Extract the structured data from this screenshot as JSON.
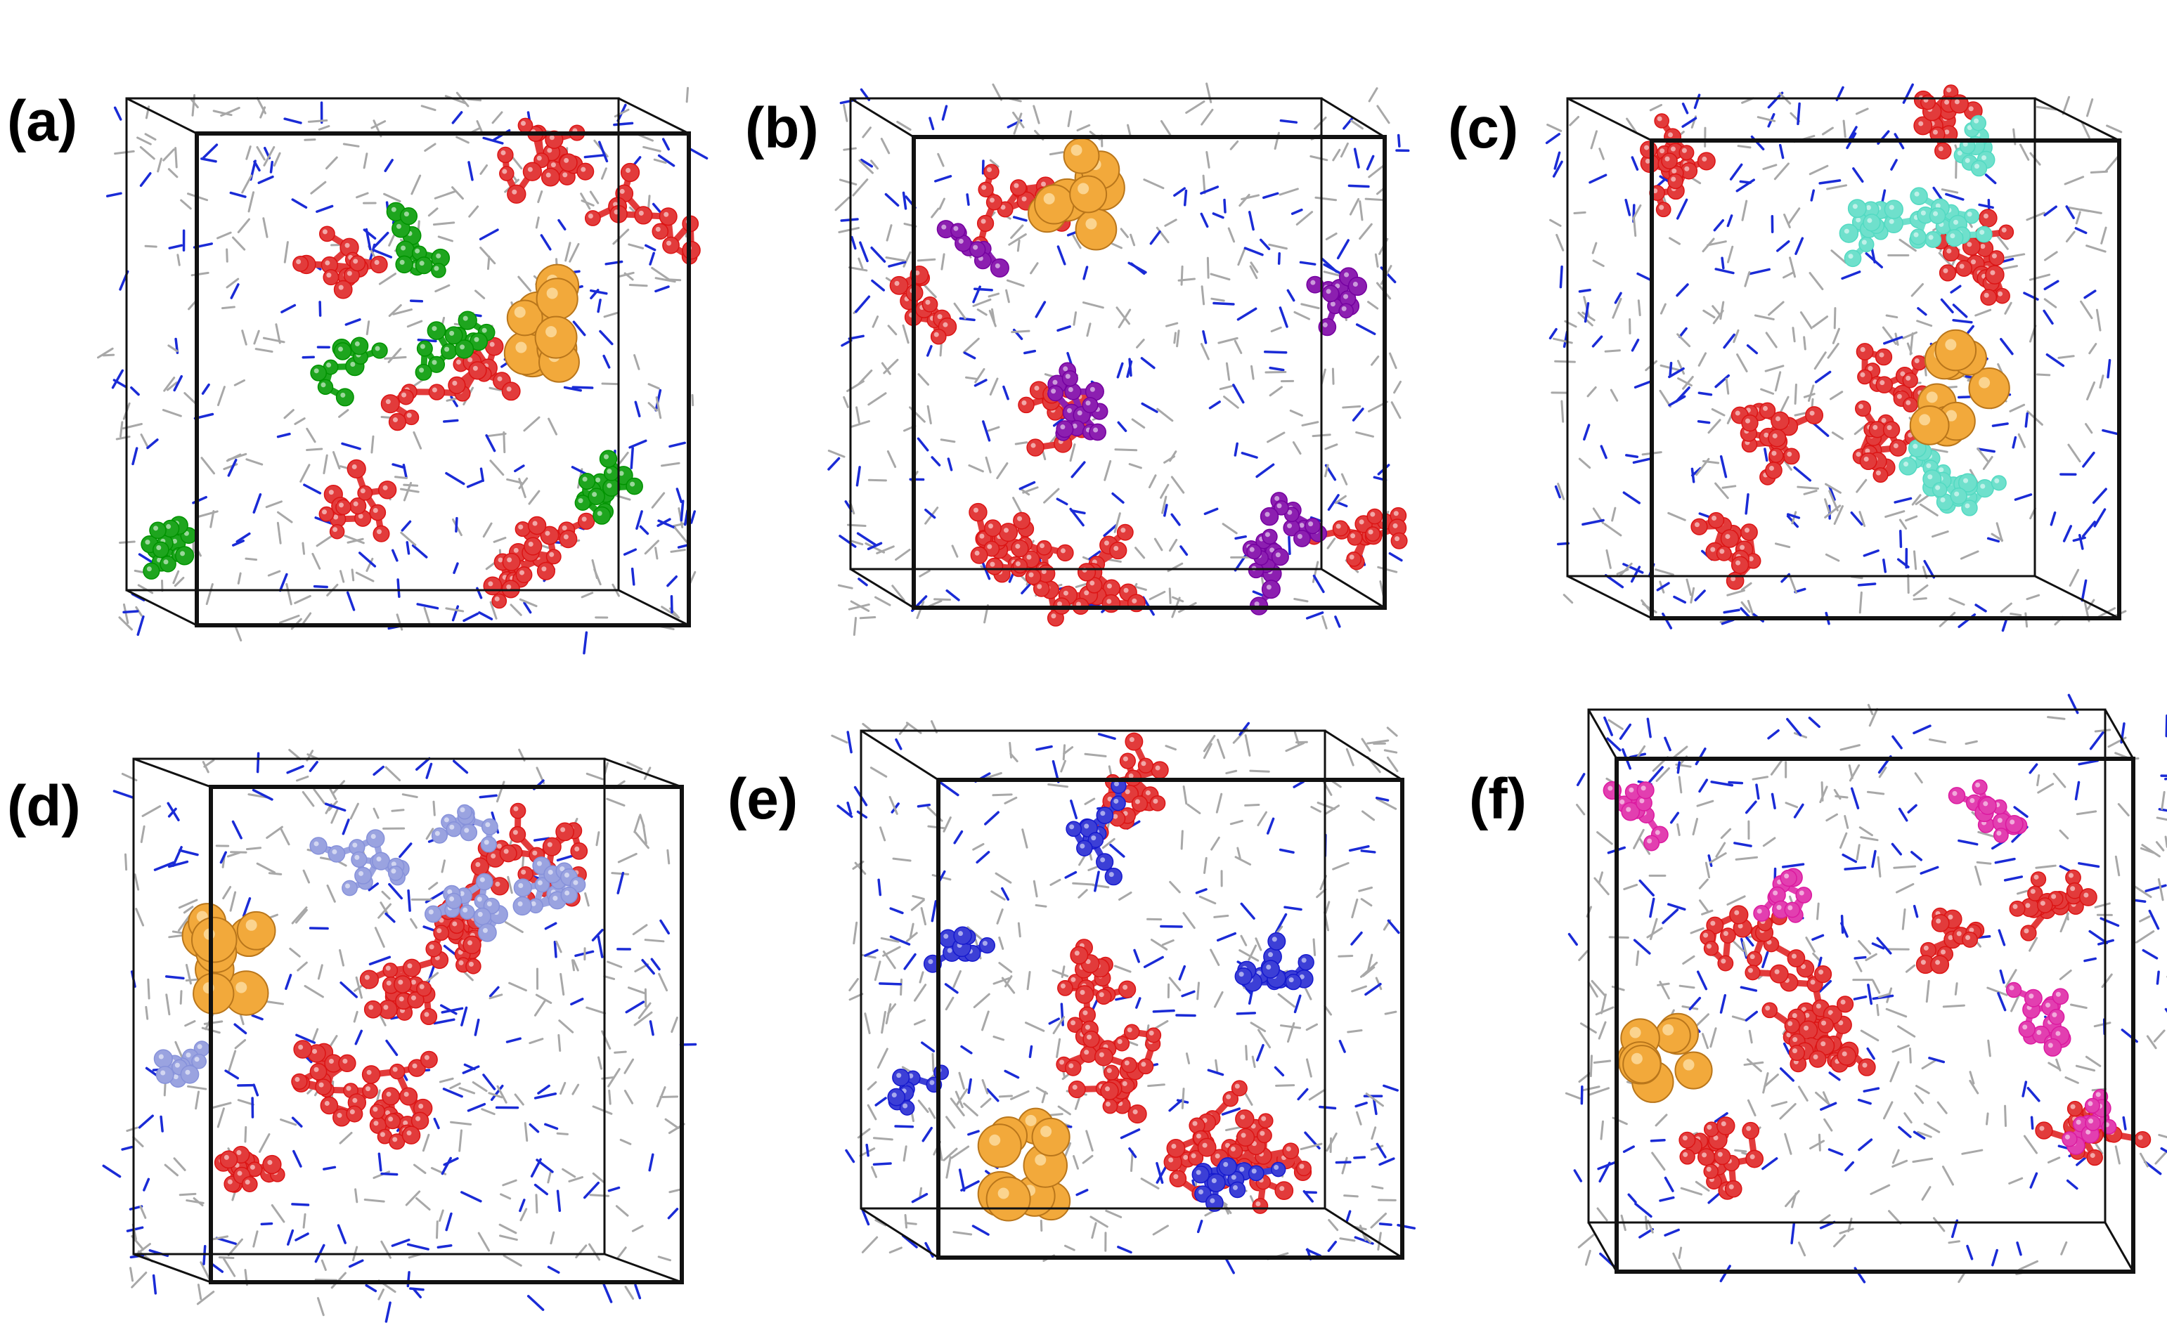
{
  "figure": {
    "background": "#ffffff",
    "panels": [
      {
        "id": "a",
        "label": "(a)",
        "solvent_color": "#1ea51e",
        "cluster_color": "#e23b3b",
        "solute_color": "#f2a93b"
      },
      {
        "id": "b",
        "label": "(b)",
        "solvent_color": "#8c1fb0",
        "cluster_color": "#e23b3b",
        "solute_color": "#f2a93b"
      },
      {
        "id": "c",
        "label": "(c)",
        "solvent_color": "#6fe0cc",
        "cluster_color": "#e23b3b",
        "solute_color": "#f2a93b"
      },
      {
        "id": "d",
        "label": "(d)",
        "solvent_color": "#9aa3e0",
        "cluster_color": "#e23b3b",
        "solute_color": "#f2a93b"
      },
      {
        "id": "e",
        "label": "(e)",
        "solvent_color": "#3c3fd6",
        "cluster_color": "#e23b3b",
        "solute_color": "#f2a93b"
      },
      {
        "id": "f",
        "label": "(f)",
        "solvent_color": "#e23fb0",
        "cluster_color": "#e23b3b",
        "solute_color": "#f2a93b"
      }
    ],
    "colors": {
      "box_edge": "#111111",
      "stick": "#a8a8a8",
      "stick_accent": "#1a2bd6"
    }
  }
}
